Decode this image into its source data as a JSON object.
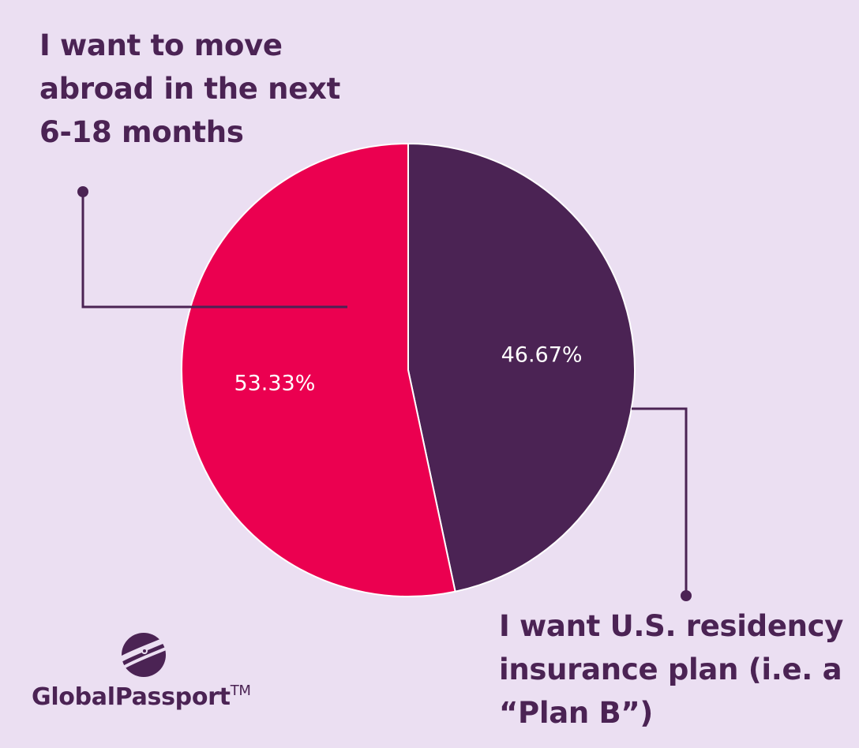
{
  "chart_data": {
    "type": "pie",
    "slices": [
      {
        "label": "I want U.S. residency insurance plan (i.e. a “Plan B”)",
        "value": 46.67,
        "value_label": "46.67%",
        "color": "#4b2354"
      },
      {
        "label": "I want to move abroad in the next 6-18 months",
        "value": 53.33,
        "value_label": "53.33%",
        "color": "#eb0050"
      }
    ],
    "start_angle": "12 o'clock",
    "direction": "clockwise",
    "legend": "callout labels with leader lines"
  },
  "callouts": {
    "move_abroad": [
      "I want to move",
      "abroad in the next",
      "6-18 months"
    ],
    "residency_plan": [
      "I want U.S. residency",
      "insurance plan (i.e. a",
      "“Plan B”)"
    ]
  },
  "brand": {
    "name": "GlobalPassport",
    "tm": "TM"
  },
  "colors": {
    "background": "#ebdff2",
    "text": "#4b2354",
    "accent": "#eb0050"
  }
}
